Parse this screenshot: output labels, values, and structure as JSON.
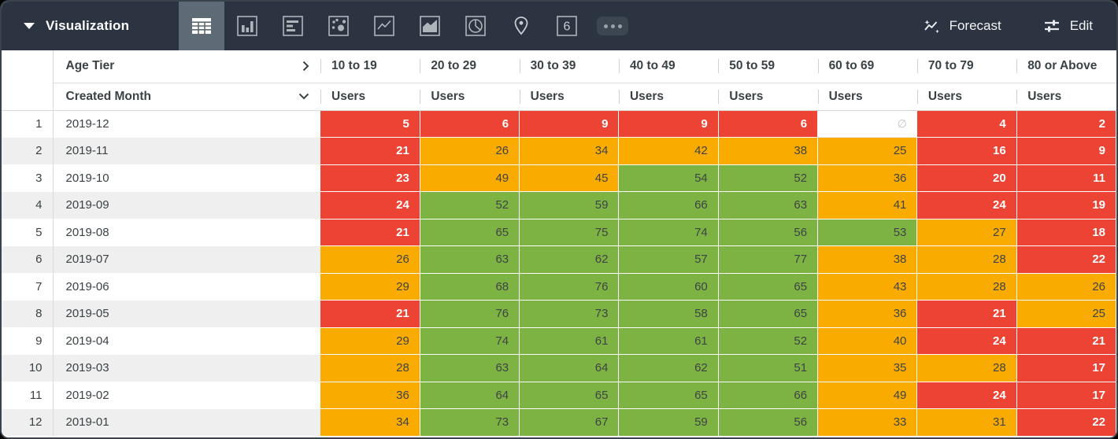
{
  "topbar": {
    "title": "Visualization",
    "selected_viz": "table",
    "viz_types": [
      "table-icon",
      "column-chart-icon",
      "bar-chart-icon",
      "scatter-plot-icon",
      "line-chart-icon",
      "area-chart-icon",
      "pie-chart-icon",
      "map-pin-icon",
      "single-value-icon",
      "more-options-icon"
    ],
    "single_value_glyph": "6",
    "forecast_label": "Forecast",
    "edit_label": "Edit"
  },
  "colors": {
    "topbar_bg": "#2b3440",
    "selected_viz_bg": "#5e6a75",
    "red": "#ec4335",
    "orange": "#f9ab00",
    "green": "#7cb342",
    "row_stripe": "#efefef"
  },
  "table": {
    "pivot_label": "Age Tier",
    "dimension_label": "Created Month",
    "measure_label": "Users",
    "null_symbol": "∅",
    "columns": [
      "10 to 19",
      "20 to 29",
      "30 to 39",
      "40 to 49",
      "50 to 59",
      "60 to 69",
      "70 to 79",
      "80 or Above"
    ],
    "rows": [
      {
        "n": "1",
        "month": "2019-12",
        "values": [
          "5",
          "6",
          "9",
          "9",
          "6",
          null,
          "4",
          "2"
        ],
        "colors": [
          "r",
          "r",
          "r",
          "r",
          "r",
          "n",
          "r",
          "r"
        ]
      },
      {
        "n": "2",
        "month": "2019-11",
        "values": [
          "21",
          "26",
          "34",
          "42",
          "38",
          "25",
          "16",
          "9"
        ],
        "colors": [
          "r",
          "o",
          "o",
          "o",
          "o",
          "o",
          "r",
          "r"
        ]
      },
      {
        "n": "3",
        "month": "2019-10",
        "values": [
          "23",
          "49",
          "45",
          "54",
          "52",
          "36",
          "20",
          "11"
        ],
        "colors": [
          "r",
          "o",
          "o",
          "g",
          "g",
          "o",
          "r",
          "r"
        ]
      },
      {
        "n": "4",
        "month": "2019-09",
        "values": [
          "24",
          "52",
          "59",
          "66",
          "63",
          "41",
          "24",
          "19"
        ],
        "colors": [
          "r",
          "g",
          "g",
          "g",
          "g",
          "o",
          "r",
          "r"
        ]
      },
      {
        "n": "5",
        "month": "2019-08",
        "values": [
          "21",
          "65",
          "75",
          "74",
          "56",
          "53",
          "27",
          "18"
        ],
        "colors": [
          "r",
          "g",
          "g",
          "g",
          "g",
          "g",
          "o",
          "r"
        ]
      },
      {
        "n": "6",
        "month": "2019-07",
        "values": [
          "26",
          "63",
          "62",
          "57",
          "77",
          "38",
          "28",
          "22"
        ],
        "colors": [
          "o",
          "g",
          "g",
          "g",
          "g",
          "o",
          "o",
          "r"
        ]
      },
      {
        "n": "7",
        "month": "2019-06",
        "values": [
          "29",
          "68",
          "76",
          "60",
          "65",
          "43",
          "28",
          "26"
        ],
        "colors": [
          "o",
          "g",
          "g",
          "g",
          "g",
          "o",
          "o",
          "o"
        ]
      },
      {
        "n": "8",
        "month": "2019-05",
        "values": [
          "21",
          "76",
          "73",
          "58",
          "65",
          "36",
          "21",
          "25"
        ],
        "colors": [
          "r",
          "g",
          "g",
          "g",
          "g",
          "o",
          "r",
          "o"
        ]
      },
      {
        "n": "9",
        "month": "2019-04",
        "values": [
          "29",
          "74",
          "61",
          "61",
          "52",
          "40",
          "24",
          "21"
        ],
        "colors": [
          "o",
          "g",
          "g",
          "g",
          "g",
          "o",
          "r",
          "r"
        ]
      },
      {
        "n": "10",
        "month": "2019-03",
        "values": [
          "28",
          "63",
          "64",
          "62",
          "51",
          "35",
          "28",
          "17"
        ],
        "colors": [
          "o",
          "g",
          "g",
          "g",
          "g",
          "o",
          "o",
          "r"
        ]
      },
      {
        "n": "11",
        "month": "2019-02",
        "values": [
          "36",
          "64",
          "65",
          "65",
          "66",
          "49",
          "24",
          "17"
        ],
        "colors": [
          "o",
          "g",
          "g",
          "g",
          "g",
          "o",
          "r",
          "r"
        ]
      },
      {
        "n": "12",
        "month": "2019-01",
        "values": [
          "34",
          "73",
          "67",
          "59",
          "56",
          "33",
          "31",
          "22"
        ],
        "colors": [
          "o",
          "g",
          "g",
          "g",
          "g",
          "o",
          "o",
          "r"
        ]
      }
    ]
  }
}
